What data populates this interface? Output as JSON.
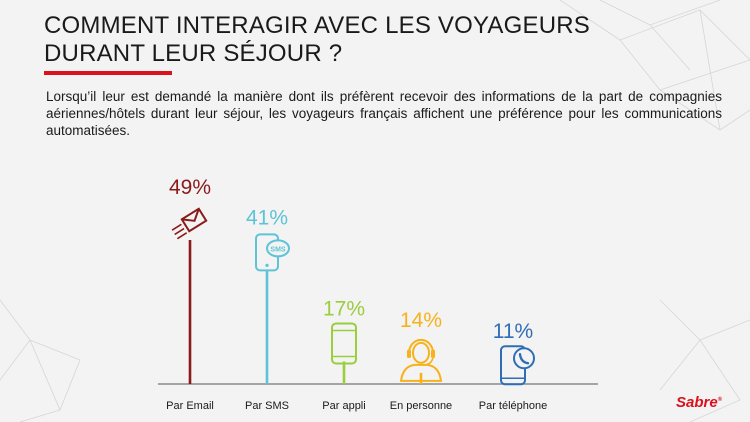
{
  "header": {
    "title": "COMMENT INTERAGIR AVEC LES VOYAGEURS\nDURANT LEUR SÉJOUR ?",
    "intro": "Lorsqu’il leur est demandé la manière dont ils préfèrent recevoir des informations de la part de compagnies aériennes/hôtels durant leur séjour, les voyageurs français affichent une préférence pour les communications automatisées."
  },
  "brand": {
    "logo": "Sabre",
    "accent": "#d9121e"
  },
  "chart_data": {
    "type": "bar",
    "categories": [
      "Par Email",
      "Par SMS",
      "Par appli",
      "En personne",
      "Par téléphone"
    ],
    "values": [
      49,
      41,
      17,
      14,
      11
    ],
    "value_labels": [
      "49%",
      "41%",
      "17%",
      "14%",
      "11%"
    ],
    "colors": [
      "#8b1a1a",
      "#5ec3d6",
      "#9bcd3c",
      "#f7b21b",
      "#2f6eb5"
    ],
    "icons": [
      "email-send-icon",
      "sms-phone-icon",
      "mobile-app-icon",
      "headset-person-icon",
      "phone-call-icon"
    ],
    "ylim": [
      0,
      50
    ],
    "grid": false
  }
}
